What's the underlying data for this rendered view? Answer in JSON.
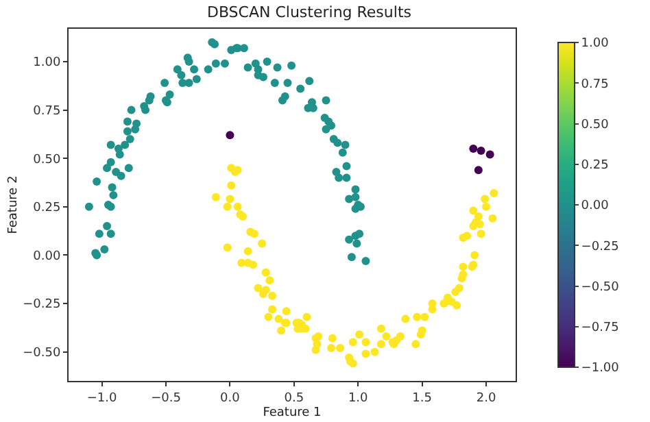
{
  "chart_data": {
    "type": "scatter",
    "title": "DBSCAN Clustering Results",
    "xlabel": "Feature 1",
    "ylabel": "Feature 2",
    "marker": "circle",
    "xlim": [
      -1.26,
      2.23
    ],
    "ylim": [
      -0.65,
      1.17
    ],
    "clim": [
      -1,
      1
    ],
    "xticks": [
      {
        "value": -1,
        "label": "−1.0"
      },
      {
        "value": -0.5,
        "label": "−0.5"
      },
      {
        "value": 0,
        "label": "0.0"
      },
      {
        "value": 0.5,
        "label": "0.5"
      },
      {
        "value": 1,
        "label": "1.0"
      },
      {
        "value": 1.5,
        "label": "1.5"
      },
      {
        "value": 2,
        "label": "2.0"
      }
    ],
    "yticks": [
      {
        "value": -0.5,
        "label": "−0.50"
      },
      {
        "value": -0.25,
        "label": "−0.25"
      },
      {
        "value": 0,
        "label": "0.00"
      },
      {
        "value": 0.25,
        "label": "0.25"
      },
      {
        "value": 0.5,
        "label": "0.50"
      },
      {
        "value": 0.75,
        "label": "0.75"
      },
      {
        "value": 1,
        "label": "1.00"
      }
    ],
    "cticks": [
      {
        "value": -1,
        "label": "−1.00"
      },
      {
        "value": -0.75,
        "label": "−0.75"
      },
      {
        "value": -0.5,
        "label": "−0.50"
      },
      {
        "value": -0.25,
        "label": "−0.25"
      },
      {
        "value": 0,
        "label": "0.00"
      },
      {
        "value": 0.25,
        "label": "0.25"
      },
      {
        "value": 0.5,
        "label": "0.50"
      },
      {
        "value": 0.75,
        "label": "0.75"
      },
      {
        "value": 1,
        "label": "1.00"
      }
    ],
    "series": [
      {
        "x": [
          -0.14,
          -0.12,
          0.06,
          0.11,
          0.01,
          0.05,
          -0.33,
          -0.32,
          -0.11,
          -0.04,
          -0.17,
          -0.41,
          -0.38,
          -0.28,
          -0.26,
          -0.32,
          -0.37,
          -0.51,
          -0.62,
          -0.63,
          -0.47,
          -0.5,
          -0.49,
          -0.77,
          -0.66,
          -0.67,
          -0.8,
          -0.73,
          -0.8,
          -0.74,
          -0.78,
          -0.82,
          -0.93,
          -0.87,
          -0.86,
          -0.93,
          -0.96,
          -0.79,
          -0.89,
          -0.85,
          -1.04,
          -0.92,
          -0.91,
          -1.1,
          -0.93,
          -0.95,
          -0.96,
          -1.02,
          -0.93,
          -0.98,
          -1.05,
          -1.04,
          0.14,
          0.2,
          0.22,
          0.22,
          0.26,
          0.29,
          0.37,
          0.35,
          0.45,
          0.48,
          0.41,
          0.43,
          0.55,
          0.62,
          0.64,
          0.61,
          0.65,
          0.75,
          0.74,
          0.77,
          0.79,
          0.75,
          0.81,
          0.84,
          0.9,
          0.88,
          0.91,
          0.83,
          0.85,
          0.91,
          0.98,
          0.93,
          0.98,
          1,
          0.98,
          1.02,
          0.93,
          0.98,
          1.01,
          0.99,
          0.95,
          1.06,
          0,
          1.9,
          1.96,
          2.03,
          1.94,
          0.01,
          0.06,
          0.04,
          0.01,
          -0.11,
          0,
          -0.02,
          0.06,
          0.08,
          0.1,
          -0.02,
          0.16,
          0.19,
          0.25,
          0.14,
          0.09,
          0.14,
          0.18,
          0.28,
          0.31,
          0.22,
          0.28,
          0.26,
          0.33,
          0.33,
          0.44,
          0.3,
          0.38,
          0.43,
          0.4,
          0.52,
          0.56,
          0.53,
          0.59,
          0.6,
          2.06,
          1.99,
          2,
          1.9,
          1.94,
          2.05,
          1.92,
          1.95,
          1.9,
          1.96,
          1.82,
          1.85,
          1.91,
          1.82,
          1.89,
          1.9,
          1.82,
          1.81,
          1.79,
          1.76,
          1.7,
          1.69,
          1.73,
          1.77,
          1.67,
          1.58,
          1.58,
          1.52,
          1.46,
          1.37,
          1.5,
          1.49,
          1.45,
          1.33,
          1.3,
          1.27,
          1.28,
          1.22,
          1.18,
          1.18,
          1.13,
          1.06,
          1.06,
          1.01,
          0.96,
          0.93,
          0.94,
          0.96,
          0.86,
          0.79,
          0.8,
          0.69,
          0.67,
          0.68,
          0.67,
          0.54,
          0.53,
          0.56,
          0.44
        ],
        "values": [
          1.1,
          1.09,
          1.07,
          1.07,
          1.06,
          1.07,
          1.02,
          1,
          0.99,
          0.99,
          0.96,
          0.96,
          0.93,
          0.96,
          0.91,
          0.89,
          0.89,
          0.89,
          0.82,
          0.8,
          0.83,
          0.8,
          0.79,
          0.75,
          0.75,
          0.77,
          0.69,
          0.68,
          0.64,
          0.65,
          0.6,
          0.57,
          0.57,
          0.55,
          0.52,
          0.48,
          0.45,
          0.45,
          0.43,
          0.41,
          0.38,
          0.35,
          0.31,
          0.25,
          0.25,
          0.26,
          0.15,
          0.11,
          0.11,
          0.03,
          0.01,
          0,
          0.97,
          0.99,
          0.96,
          0.93,
          0.92,
          1,
          0.97,
          0.89,
          0.89,
          0.98,
          0.8,
          0.82,
          0.86,
          0.9,
          0.79,
          0.76,
          0.76,
          0.8,
          0.71,
          0.69,
          0.67,
          0.65,
          0.6,
          0.58,
          0.57,
          0.53,
          0.46,
          0.43,
          0.4,
          0.4,
          0.34,
          0.29,
          0.3,
          0.26,
          0.24,
          0.25,
          0.08,
          0.1,
          0.11,
          0.06,
          -0.01,
          -0.03,
          0.62,
          0.55,
          0.54,
          0.52,
          0.44,
          0.45,
          0.44,
          0.43,
          0.36,
          0.3,
          0.29,
          0.25,
          0.25,
          0.21,
          0.2,
          0.04,
          0.12,
          0.11,
          0.06,
          0.02,
          -0.04,
          -0.04,
          -0.05,
          -0.09,
          -0.13,
          -0.17,
          -0.18,
          -0.2,
          -0.21,
          -0.28,
          -0.29,
          -0.32,
          -0.33,
          -0.35,
          -0.39,
          -0.35,
          -0.36,
          -0.38,
          -0.38,
          -0.32,
          0.32,
          0.29,
          0.25,
          0.23,
          0.2,
          0.19,
          0.17,
          0.16,
          0.15,
          0.11,
          0.09,
          0.1,
          0,
          -0.06,
          -0.06,
          -0.05,
          -0.1,
          -0.12,
          -0.17,
          -0.19,
          -0.22,
          -0.24,
          -0.24,
          -0.26,
          -0.25,
          -0.25,
          -0.28,
          -0.32,
          -0.32,
          -0.33,
          -0.39,
          -0.41,
          -0.46,
          -0.42,
          -0.44,
          -0.45,
          -0.46,
          -0.42,
          -0.38,
          -0.46,
          -0.5,
          -0.45,
          -0.51,
          -0.41,
          -0.45,
          -0.53,
          -0.55,
          -0.56,
          -0.48,
          -0.48,
          -0.43,
          -0.42,
          -0.43,
          -0.46,
          -0.49,
          -0.35,
          -0.38,
          -0.38,
          -0.35
        ],
        "cvalues": [
          0,
          0,
          0,
          0,
          0,
          0,
          0,
          0,
          0,
          0,
          0,
          0,
          0,
          0,
          0,
          0,
          0,
          0,
          0,
          0,
          0,
          0,
          0,
          0,
          0,
          0,
          0,
          0,
          0,
          0,
          0,
          0,
          0,
          0,
          0,
          0,
          0,
          0,
          0,
          0,
          0,
          0,
          0,
          0,
          0,
          0,
          0,
          0,
          0,
          0,
          0,
          0,
          0,
          0,
          0,
          0,
          0,
          0,
          0,
          0,
          0,
          0,
          0,
          0,
          0,
          0,
          0,
          0,
          0,
          0,
          0,
          0,
          0,
          0,
          0,
          0,
          0,
          0,
          0,
          0,
          0,
          0,
          0,
          0,
          0,
          0,
          0,
          0,
          0,
          0,
          0,
          0,
          0,
          0,
          -1,
          -1,
          -1,
          -1,
          -1,
          1,
          1,
          1,
          1,
          1,
          1,
          1,
          1,
          1,
          1,
          1,
          1,
          1,
          1,
          1,
          1,
          1,
          1,
          1,
          1,
          1,
          1,
          1,
          1,
          1,
          1,
          1,
          1,
          1,
          1,
          1,
          1,
          1,
          1,
          1,
          1,
          1,
          1,
          1,
          1,
          1,
          1,
          1,
          1,
          1,
          1,
          1,
          1,
          1,
          1,
          1,
          1,
          1,
          1,
          1,
          1,
          1,
          1,
          1,
          1,
          1,
          1,
          1,
          1,
          1,
          1,
          1,
          1,
          1,
          1,
          1,
          1,
          1,
          1,
          1,
          1,
          1,
          1,
          1,
          1,
          1,
          1,
          1,
          1,
          1,
          1,
          1,
          1,
          1,
          1,
          1,
          1,
          1,
          1
        ]
      }
    ]
  }
}
